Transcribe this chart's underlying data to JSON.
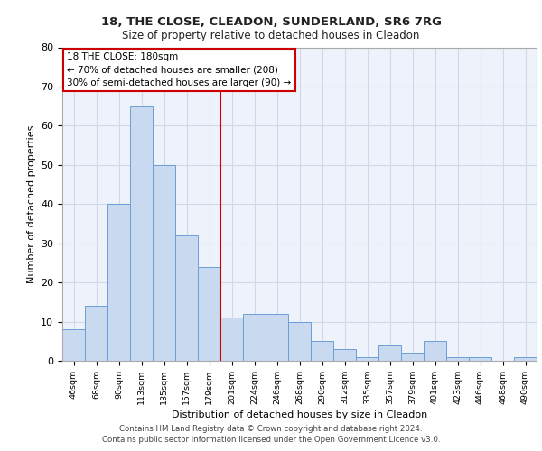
{
  "title1": "18, THE CLOSE, CLEADON, SUNDERLAND, SR6 7RG",
  "title2": "Size of property relative to detached houses in Cleadon",
  "xlabel": "Distribution of detached houses by size in Cleadon",
  "ylabel": "Number of detached properties",
  "categories": [
    "46sqm",
    "68sqm",
    "90sqm",
    "113sqm",
    "135sqm",
    "157sqm",
    "179sqm",
    "201sqm",
    "224sqm",
    "246sqm",
    "268sqm",
    "290sqm",
    "312sqm",
    "335sqm",
    "357sqm",
    "379sqm",
    "401sqm",
    "423sqm",
    "446sqm",
    "468sqm",
    "490sqm"
  ],
  "values": [
    8,
    14,
    40,
    65,
    50,
    32,
    24,
    11,
    12,
    12,
    10,
    5,
    3,
    1,
    4,
    2,
    5,
    1,
    1,
    0,
    1
  ],
  "bar_color": "#c9d9f0",
  "bar_edge_color": "#6a9fd8",
  "grid_color": "#d0d8e8",
  "background_color": "#eef2fa",
  "vline_x_index": 6.5,
  "vline_color": "#cc0000",
  "annotation_line1": "18 THE CLOSE: 180sqm",
  "annotation_line2": "← 70% of detached houses are smaller (208)",
  "annotation_line3": "30% of semi-detached houses are larger (90) →",
  "annotation_box_color": "#ffffff",
  "annotation_box_edge": "#cc0000",
  "footer1": "Contains HM Land Registry data © Crown copyright and database right 2024.",
  "footer2": "Contains public sector information licensed under the Open Government Licence v3.0.",
  "ylim": [
    0,
    80
  ],
  "yticks": [
    0,
    10,
    20,
    30,
    40,
    50,
    60,
    70,
    80
  ]
}
